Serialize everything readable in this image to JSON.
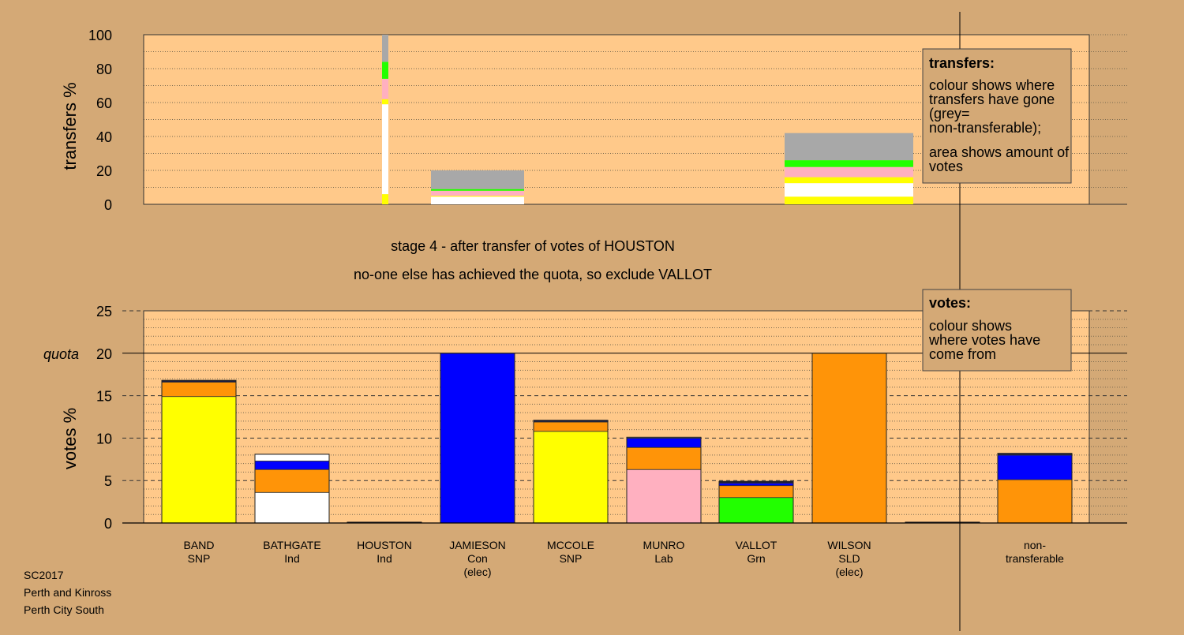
{
  "colors": {
    "page_bg": "#d4a976",
    "plot_bg": "#ffc98a",
    "grid": "#7a6a50",
    "SNP": "#ffff00",
    "Ind": "#ffffff",
    "Con": "#0000ff",
    "SLD": "#ff9408",
    "Lab": "#ffb0c0",
    "Grn": "#22ff00",
    "nontransferable": "#a8a8a8",
    "dark": "#1a1a40"
  },
  "header": {
    "stage_line": "stage 4 - after transfer of votes of HOUSTON",
    "action_line": "no-one else has achieved the quota, so exclude VALLOT"
  },
  "footer": {
    "line1": "SC2017",
    "line2": "Perth and Kinross",
    "line3": "Perth City South"
  },
  "transfers_legend": {
    "title": "transfers:",
    "text1": "colour shows where transfers have gone (grey= non-transferable);",
    "text2": "area shows amount of votes"
  },
  "votes_legend": {
    "title": "votes:",
    "text1": "colour shows where votes have come from"
  },
  "chart_data": [
    {
      "type": "bar",
      "stacked": true,
      "ylabel": "transfers %",
      "ylim": [
        0,
        100
      ],
      "yticks": [
        0,
        20,
        40,
        60,
        80,
        100
      ],
      "categories": [
        "BAND",
        "BATHGATE",
        "HOUSTON",
        "JAMIESON",
        "MCCOLE",
        "MUNRO",
        "VALLOT",
        "WILSON",
        "",
        "non-transferable"
      ],
      "bars": [
        {
          "category": "HOUSTON",
          "width": "narrow",
          "segments": [
            {
              "to": "SNP",
              "value": 6
            },
            {
              "to": "Ind",
              "value": 53
            },
            {
              "to": "SNP",
              "value": 3
            },
            {
              "to": "Lab",
              "value": 12
            },
            {
              "to": "Grn",
              "value": 10
            },
            {
              "to": "nontransferable",
              "value": 16
            }
          ]
        },
        {
          "category": "JAMIESON",
          "width": "normal",
          "segments": [
            {
              "to": "Ind",
              "value": 4.5
            },
            {
              "to": "SNP",
              "value": 0.5
            },
            {
              "to": "Lab",
              "value": 3
            },
            {
              "to": "Grn",
              "value": 1
            },
            {
              "to": "nontransferable",
              "value": 11
            }
          ]
        },
        {
          "category": "WILSON",
          "width": "wide",
          "segments": [
            {
              "to": "SNP",
              "value": 4.5
            },
            {
              "to": "Ind",
              "value": 8
            },
            {
              "to": "SNP",
              "value": 3.5
            },
            {
              "to": "Lab",
              "value": 6
            },
            {
              "to": "Grn",
              "value": 4
            },
            {
              "to": "nontransferable",
              "value": 16
            }
          ]
        }
      ]
    },
    {
      "type": "bar",
      "stacked": true,
      "ylabel": "votes %",
      "ylim": [
        0,
        25
      ],
      "yticks": [
        0,
        5,
        10,
        15,
        20,
        25
      ],
      "quota": 20,
      "quota_label": "quota",
      "categories": [
        "BAND",
        "BATHGATE",
        "HOUSTON",
        "JAMIESON",
        "MCCOLE",
        "MUNRO",
        "VALLOT",
        "WILSON",
        "",
        "non-transferable"
      ],
      "candidates": [
        {
          "name": "BAND",
          "party": "SNP",
          "note": "",
          "segments": [
            {
              "from": "SNP",
              "value": 14.9
            },
            {
              "from": "SLD",
              "value": 1.7
            },
            {
              "from": "dark",
              "value": 0.2
            }
          ]
        },
        {
          "name": "BATHGATE",
          "party": "Ind",
          "note": "",
          "segments": [
            {
              "from": "Ind",
              "value": 3.6
            },
            {
              "from": "SLD",
              "value": 2.7
            },
            {
              "from": "Con",
              "value": 1.0
            },
            {
              "from": "Ind",
              "value": 0.8
            }
          ]
        },
        {
          "name": "HOUSTON",
          "party": "Ind",
          "note": "",
          "segments": [
            {
              "from": "dark",
              "value": 0.1
            }
          ]
        },
        {
          "name": "JAMIESON",
          "party": "Con",
          "note": "(elec)",
          "segments": [
            {
              "from": "Con",
              "value": 20
            }
          ]
        },
        {
          "name": "MCCOLE",
          "party": "SNP",
          "note": "",
          "segments": [
            {
              "from": "SNP",
              "value": 10.8
            },
            {
              "from": "SLD",
              "value": 1.1
            },
            {
              "from": "dark",
              "value": 0.2
            }
          ]
        },
        {
          "name": "MUNRO",
          "party": "Lab",
          "note": "",
          "segments": [
            {
              "from": "Lab",
              "value": 6.3
            },
            {
              "from": "SLD",
              "value": 2.6
            },
            {
              "from": "Con",
              "value": 1.1
            },
            {
              "from": "Ind",
              "value": 0.1
            }
          ]
        },
        {
          "name": "VALLOT",
          "party": "Grn",
          "note": "",
          "segments": [
            {
              "from": "Grn",
              "value": 3.0
            },
            {
              "from": "SLD",
              "value": 1.4
            },
            {
              "from": "Con",
              "value": 0.3
            },
            {
              "from": "dark",
              "value": 0.2
            }
          ]
        },
        {
          "name": "WILSON",
          "party": "SLD",
          "note": "(elec)",
          "segments": [
            {
              "from": "SLD",
              "value": 20
            }
          ]
        },
        {
          "name": "",
          "party": "",
          "note": "",
          "segments": [
            {
              "from": "dark",
              "value": 0.1
            }
          ]
        },
        {
          "name": "non-",
          "party": "transferable",
          "note": "",
          "segments": [
            {
              "from": "SLD",
              "value": 5.1
            },
            {
              "from": "Con",
              "value": 2.9
            },
            {
              "from": "dark",
              "value": 0.2
            }
          ]
        }
      ]
    }
  ]
}
